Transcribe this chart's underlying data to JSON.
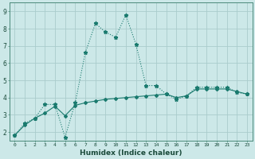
{
  "title": "",
  "xlabel": "Humidex (Indice chaleur)",
  "background_color": "#cce8e8",
  "grid_color": "#aacccc",
  "line_color": "#1a7a6e",
  "xlim": [
    -0.5,
    23.5
  ],
  "ylim": [
    1.5,
    9.5
  ],
  "x_ticks": [
    0,
    1,
    2,
    3,
    4,
    5,
    6,
    7,
    8,
    9,
    10,
    11,
    12,
    13,
    14,
    15,
    16,
    17,
    18,
    19,
    20,
    21,
    22,
    23
  ],
  "y_ticks": [
    2,
    3,
    4,
    5,
    6,
    7,
    8,
    9
  ],
  "line1_x": [
    0,
    1,
    2,
    3,
    4,
    5,
    6,
    7,
    8,
    9,
    10,
    11,
    12,
    13,
    14,
    15,
    16,
    17,
    18,
    19,
    20,
    21,
    22,
    23
  ],
  "line1_y": [
    1.8,
    2.5,
    2.8,
    3.6,
    3.6,
    1.7,
    3.7,
    6.6,
    8.3,
    7.8,
    7.5,
    8.8,
    7.1,
    4.7,
    4.7,
    4.2,
    3.9,
    4.1,
    4.6,
    4.6,
    4.6,
    4.6,
    4.3,
    4.2
  ],
  "line2_x": [
    0,
    1,
    2,
    3,
    4,
    5,
    6,
    7,
    8,
    9,
    10,
    11,
    12,
    13,
    14,
    15,
    16,
    17,
    18,
    19,
    20,
    21,
    22,
    23
  ],
  "line2_y": [
    1.8,
    2.4,
    2.8,
    3.1,
    3.5,
    2.95,
    3.55,
    3.7,
    3.8,
    3.9,
    3.95,
    4.0,
    4.05,
    4.1,
    4.15,
    4.2,
    4.0,
    4.1,
    4.5,
    4.5,
    4.5,
    4.5,
    4.35,
    4.2
  ]
}
